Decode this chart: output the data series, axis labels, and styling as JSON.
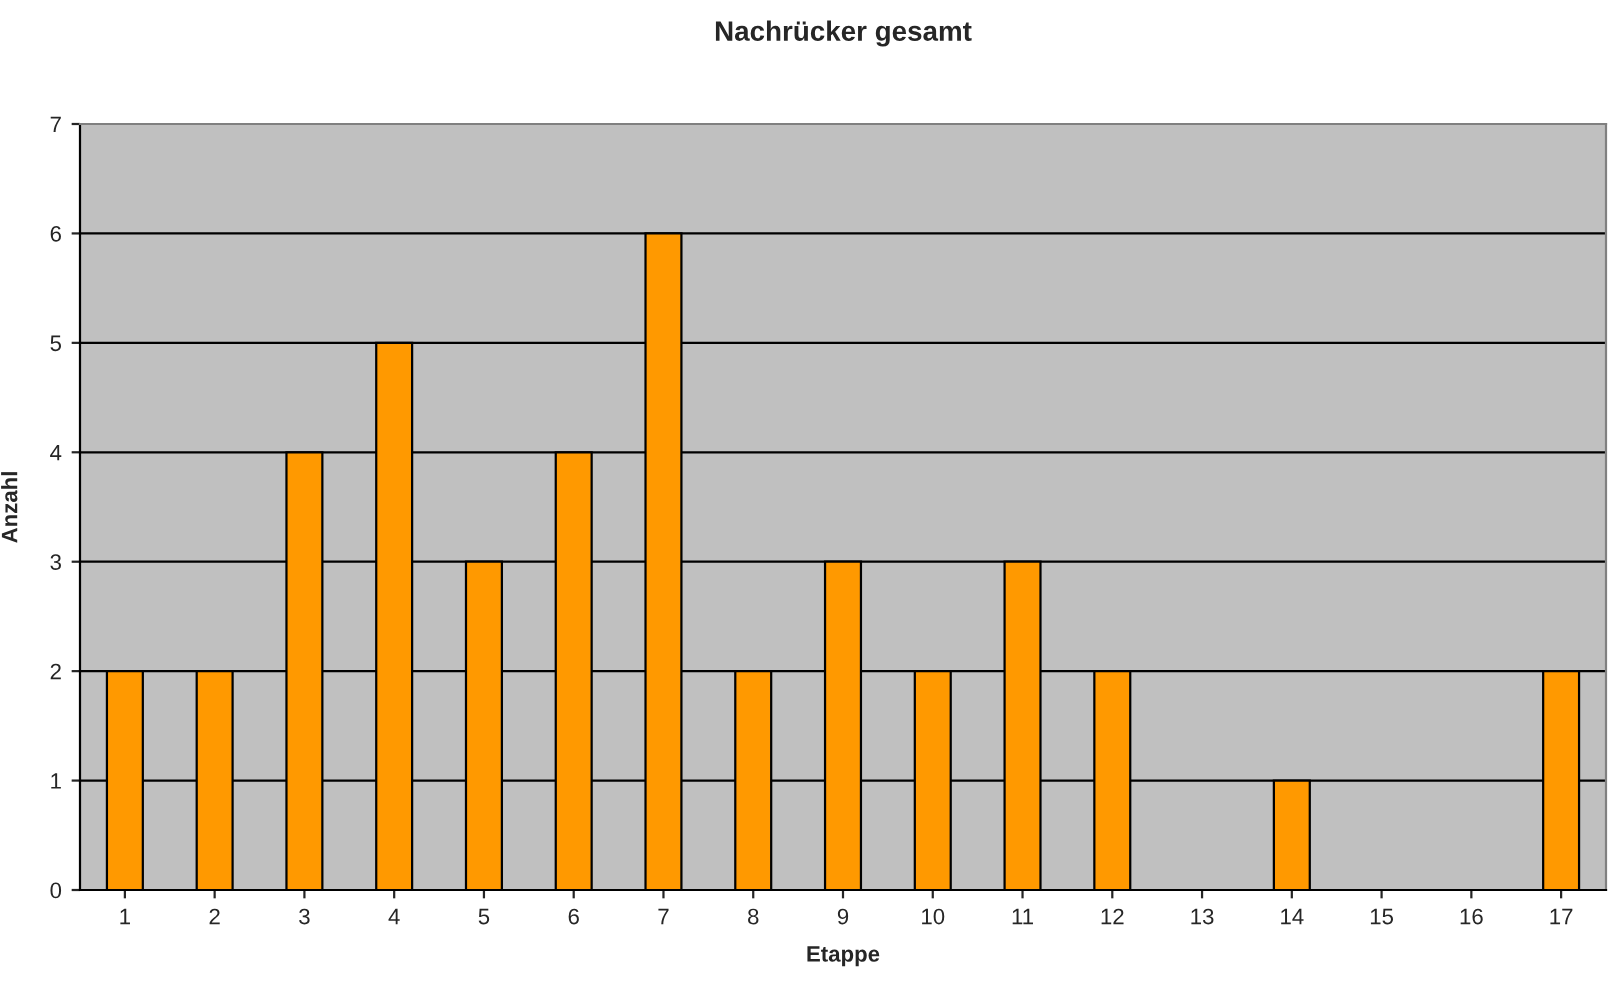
{
  "chart_data": {
    "type": "bar",
    "title": "Nachrücker gesamt",
    "xlabel": "Etappe",
    "ylabel": "Anzahl",
    "categories": [
      "1",
      "2",
      "3",
      "4",
      "5",
      "6",
      "7",
      "8",
      "9",
      "10",
      "11",
      "12",
      "13",
      "14",
      "15",
      "16",
      "17"
    ],
    "values": [
      2,
      2,
      4,
      5,
      3,
      4,
      6,
      2,
      3,
      2,
      3,
      2,
      0,
      1,
      0,
      0,
      2
    ],
    "color": "#ff9900",
    "ylim": [
      0,
      7
    ],
    "yticks": [
      0,
      1,
      2,
      3,
      4,
      5,
      6,
      7
    ],
    "grid": "y",
    "legend": false
  }
}
